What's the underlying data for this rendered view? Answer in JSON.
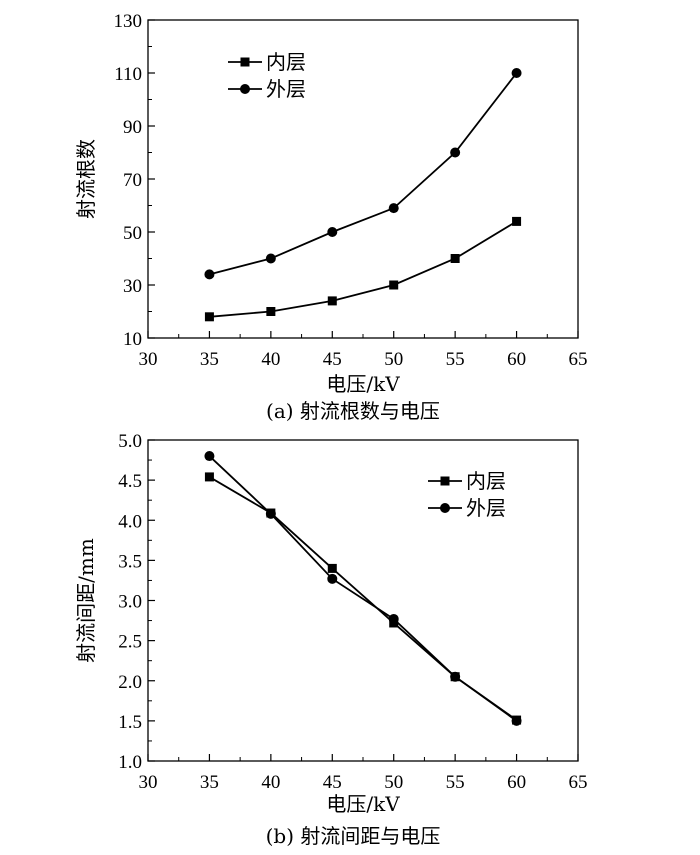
{
  "chart_data": [
    {
      "type": "line",
      "caption": "(a) 射流根数与电压",
      "xlabel": "电压/kV",
      "ylabel": "射流根数",
      "xlim": [
        30,
        65
      ],
      "ylim": [
        10,
        130
      ],
      "xticks": [
        30,
        35,
        40,
        45,
        50,
        55,
        60,
        65
      ],
      "yticks": [
        10,
        30,
        50,
        70,
        90,
        110,
        130
      ],
      "legend_position": "top-left",
      "x": [
        35,
        40,
        45,
        50,
        55,
        60
      ],
      "series": [
        {
          "name": "内层",
          "marker": "square",
          "values": [
            18,
            20,
            24,
            30,
            40,
            54
          ]
        },
        {
          "name": "外层",
          "marker": "circle",
          "values": [
            34,
            40,
            50,
            59,
            80,
            110
          ]
        }
      ]
    },
    {
      "type": "line",
      "caption": "(b) 射流间距与电压",
      "xlabel": "电压/kV",
      "ylabel": "射流间距/mm",
      "xlim": [
        30,
        65
      ],
      "ylim": [
        1.0,
        5.0
      ],
      "xticks": [
        30,
        35,
        40,
        45,
        50,
        55,
        60,
        65
      ],
      "yticks": [
        "1.0",
        "1.5",
        "2.0",
        "2.5",
        "3.0",
        "3.5",
        "4.0",
        "4.5",
        "5.0"
      ],
      "legend_position": "top-right",
      "x": [
        35,
        40,
        45,
        50,
        55,
        60
      ],
      "series": [
        {
          "name": "内层",
          "marker": "square",
          "values": [
            4.54,
            4.09,
            3.4,
            2.72,
            2.05,
            1.51
          ]
        },
        {
          "name": "外层",
          "marker": "circle",
          "values": [
            4.8,
            4.08,
            3.27,
            2.77,
            2.05,
            1.5
          ]
        }
      ]
    }
  ]
}
